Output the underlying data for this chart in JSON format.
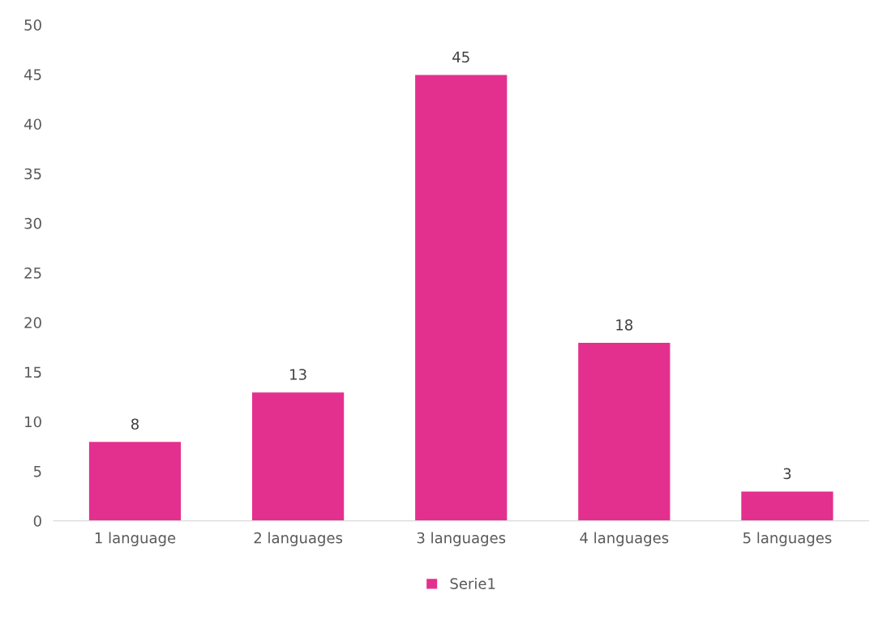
{
  "chart_data": {
    "type": "bar",
    "categories": [
      "1 language",
      "2 languages",
      "3 languages",
      "4 languages",
      "5 languages"
    ],
    "series": [
      {
        "name": "Serie1",
        "color": "#e3308f",
        "values": [
          8,
          13,
          45,
          18,
          3
        ]
      }
    ],
    "ylim": [
      0,
      50
    ],
    "yticks": [
      0,
      5,
      10,
      15,
      20,
      25,
      30,
      35,
      40,
      45,
      50
    ],
    "data_labels": true,
    "grid": false,
    "legend": "bottom"
  }
}
